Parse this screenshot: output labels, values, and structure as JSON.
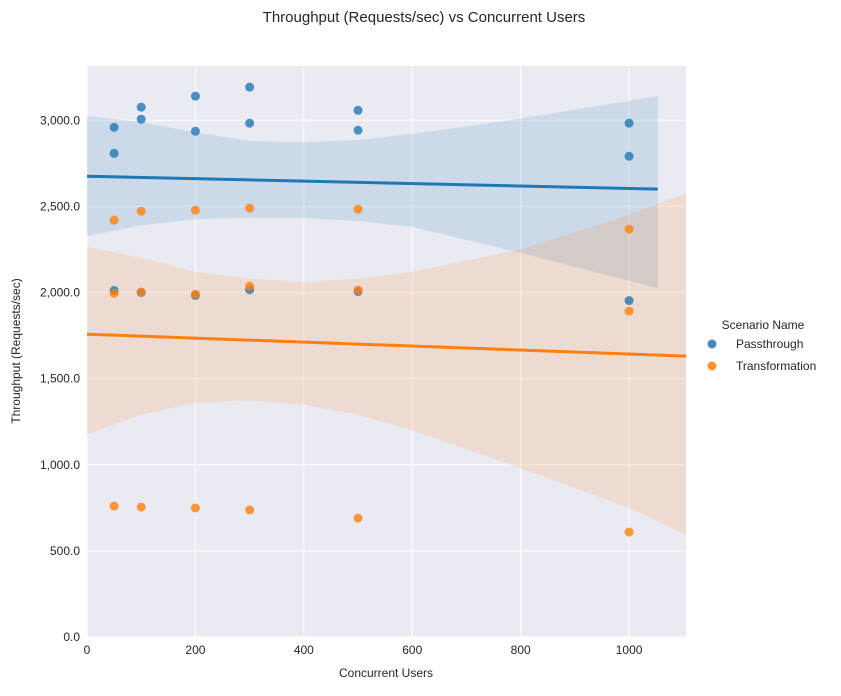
{
  "chart_data": {
    "type": "scatter",
    "title": "Throughput (Requests/sec) vs Concurrent Users",
    "xlabel": "Concurrent Users",
    "ylabel": "Throughput (Requests/sec)",
    "xlim": [
      0,
      1105
    ],
    "ylim": [
      0,
      3315
    ],
    "xticks": [
      0,
      200,
      400,
      600,
      800,
      1000
    ],
    "xtick_labels": [
      "0",
      "200",
      "400",
      "600",
      "800",
      "1000"
    ],
    "yticks": [
      0,
      500,
      1000,
      1500,
      2000,
      2500,
      3000
    ],
    "ytick_labels": [
      "0.0",
      "500.0",
      "1,000.0",
      "1,500.0",
      "2,000.0",
      "2,500.0",
      "3,000.0"
    ],
    "grid": true,
    "legend": {
      "title": "Scenario Name",
      "placement": "right"
    },
    "series": [
      {
        "name": "Passthrough",
        "color": "#1f77b4",
        "points": [
          [
            50,
            2959
          ],
          [
            50,
            2808
          ],
          [
            50,
            2012
          ],
          [
            100,
            3076
          ],
          [
            100,
            3006
          ],
          [
            100,
            2000
          ],
          [
            200,
            3140
          ],
          [
            200,
            2936
          ],
          [
            200,
            1983
          ],
          [
            300,
            3192
          ],
          [
            300,
            2983
          ],
          [
            300,
            2017
          ],
          [
            500,
            3058
          ],
          [
            500,
            2942
          ],
          [
            500,
            2006
          ],
          [
            1000,
            2983
          ],
          [
            1000,
            2791
          ],
          [
            1000,
            1953
          ]
        ],
        "fit": [
          [
            0,
            2675
          ],
          [
            1053,
            2600
          ]
        ],
        "ci": {
          "x": [
            0,
            100,
            200,
            300,
            400,
            500,
            600,
            800,
            1053
          ],
          "lower": [
            2327,
            2390,
            2425,
            2435,
            2432,
            2415,
            2380,
            2230,
            2026
          ],
          "upper": [
            3024,
            2990,
            2930,
            2880,
            2873,
            2885,
            2920,
            3010,
            3140
          ]
        }
      },
      {
        "name": "Transformation",
        "color": "#ff7f0e",
        "points": [
          [
            50,
            2420
          ],
          [
            50,
            1996
          ],
          [
            50,
            760
          ],
          [
            100,
            2472
          ],
          [
            100,
            2002
          ],
          [
            100,
            754
          ],
          [
            200,
            2478
          ],
          [
            200,
            1990
          ],
          [
            200,
            749
          ],
          [
            300,
            2490
          ],
          [
            300,
            2037
          ],
          [
            300,
            737
          ],
          [
            500,
            2484
          ],
          [
            500,
            2014
          ],
          [
            500,
            690
          ],
          [
            1000,
            2368
          ],
          [
            1000,
            1892
          ],
          [
            1000,
            609
          ]
        ],
        "fit": [
          [
            0,
            1758
          ],
          [
            1105,
            1631
          ]
        ],
        "ci": {
          "x": [
            0,
            100,
            200,
            300,
            400,
            500,
            600,
            800,
            1000,
            1105
          ],
          "lower": [
            1178,
            1290,
            1360,
            1375,
            1350,
            1290,
            1200,
            980,
            750,
            592
          ],
          "upper": [
            2264,
            2200,
            2120,
            2080,
            2060,
            2080,
            2120,
            2250,
            2450,
            2577
          ]
        }
      }
    ]
  }
}
